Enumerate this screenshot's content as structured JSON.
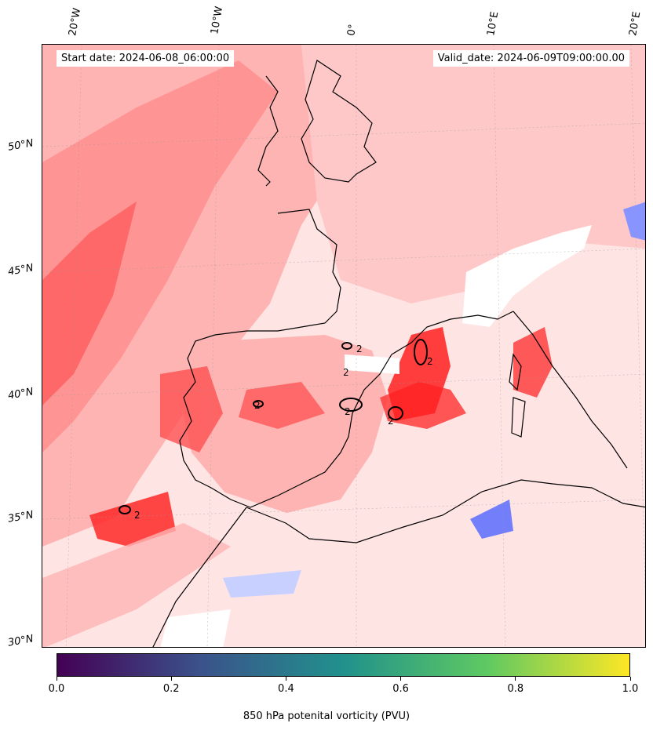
{
  "header": {
    "start_date": "Start date: 2024-06-08_06:00:00",
    "valid_date": "Valid_date: 2024-06-09T09:00:00.00"
  },
  "longitude_labels": [
    "20°W",
    "10°W",
    "0°",
    "10°E",
    "20°E"
  ],
  "latitude_labels": [
    "50°N",
    "45°N",
    "40°N",
    "35°N",
    "30°N"
  ],
  "contour_labels": [
    "2",
    "2",
    "2",
    "2",
    "2",
    "2",
    "2"
  ],
  "colorbar": {
    "title": "850 hPa potenital vorticity (PVU)",
    "ticks": [
      "0.0",
      "0.2",
      "0.4",
      "0.6",
      "0.8",
      "1.0"
    ],
    "colormap": "viridis",
    "colors": [
      "#440154",
      "#3b528b",
      "#21918c",
      "#5ec962",
      "#fde725"
    ]
  },
  "field_colors": {
    "strong_red": "#ff0000",
    "red": "#ff5a5a",
    "light_red": "#ffb4b4",
    "pale_red": "#ffe4e4",
    "light_blue": "#dfe3ff",
    "blue": "#5a6cff",
    "coastline": "#000000"
  }
}
